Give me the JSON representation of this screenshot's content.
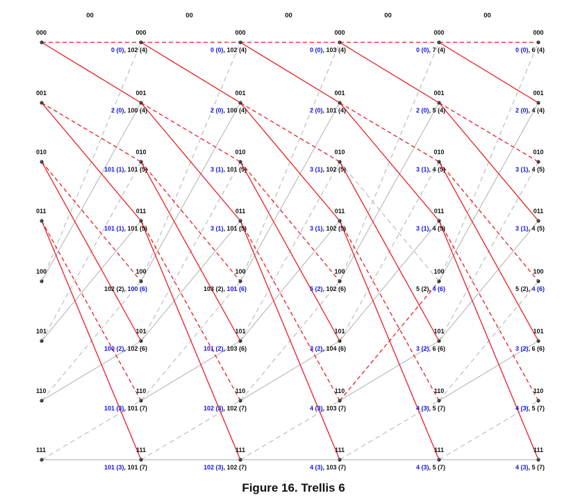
{
  "figure": {
    "caption": "Figure 16. Trellis 6"
  },
  "trellis": {
    "step_labels": [
      "00",
      "00",
      "00",
      "00",
      "00"
    ],
    "states": [
      "000",
      "001",
      "010",
      "011",
      "100",
      "101",
      "110",
      "111"
    ],
    "stages": [
      {
        "metrics": []
      },
      {
        "metrics": [
          [
            {
              "t": "0 (0)",
              "c": "blue"
            },
            {
              "t": ", 102 (4)",
              "c": "black"
            }
          ],
          [
            {
              "t": "2 (0)",
              "c": "blue"
            },
            {
              "t": ", 100 (4)",
              "c": "black"
            }
          ],
          [
            {
              "t": "101 (1)",
              "c": "blue"
            },
            {
              "t": ", 101 (5)",
              "c": "black"
            }
          ],
          [
            {
              "t": "101 (1)",
              "c": "blue"
            },
            {
              "t": ", 101 (5)",
              "c": "black"
            }
          ],
          [
            {
              "t": "102 (2), ",
              "c": "black"
            },
            {
              "t": "100 (6)",
              "c": "blue"
            }
          ],
          [
            {
              "t": "100 (2)",
              "c": "blue"
            },
            {
              "t": ", 102 (6)",
              "c": "black"
            }
          ],
          [
            {
              "t": "101 (3)",
              "c": "blue"
            },
            {
              "t": ", 101 (7)",
              "c": "black"
            }
          ],
          [
            {
              "t": "101 (3)",
              "c": "blue"
            },
            {
              "t": ", 101 (7)",
              "c": "black"
            }
          ]
        ]
      },
      {
        "metrics": [
          [
            {
              "t": "0 (0)",
              "c": "blue"
            },
            {
              "t": ", 102 (4)",
              "c": "black"
            }
          ],
          [
            {
              "t": "2 (0)",
              "c": "blue"
            },
            {
              "t": ", 100 (4)",
              "c": "black"
            }
          ],
          [
            {
              "t": "3 (1)",
              "c": "blue"
            },
            {
              "t": ", 101 (5)",
              "c": "black"
            }
          ],
          [
            {
              "t": "3 (1)",
              "c": "blue"
            },
            {
              "t": ", 101 (5)",
              "c": "black"
            }
          ],
          [
            {
              "t": "103 (2), ",
              "c": "black"
            },
            {
              "t": "101 (6)",
              "c": "blue"
            }
          ],
          [
            {
              "t": "101 (2)",
              "c": "blue"
            },
            {
              "t": ", 103 (6)",
              "c": "black"
            }
          ],
          [
            {
              "t": "102 (3)",
              "c": "blue"
            },
            {
              "t": ", 102 (7)",
              "c": "black"
            }
          ],
          [
            {
              "t": "102 (3)",
              "c": "blue"
            },
            {
              "t": ", 102 (7)",
              "c": "black"
            }
          ]
        ]
      },
      {
        "metrics": [
          [
            {
              "t": "0 (0)",
              "c": "blue"
            },
            {
              "t": ", 103 (4)",
              "c": "black"
            }
          ],
          [
            {
              "t": "2 (0)",
              "c": "blue"
            },
            {
              "t": ", 101 (4)",
              "c": "black"
            }
          ],
          [
            {
              "t": "3 (1)",
              "c": "blue"
            },
            {
              "t": ", 102 (5)",
              "c": "black"
            }
          ],
          [
            {
              "t": "3 (1)",
              "c": "blue"
            },
            {
              "t": ", 102 (5)",
              "c": "black"
            }
          ],
          [
            {
              "t": "5 (2)",
              "c": "blue"
            },
            {
              "t": ", 102 (6)",
              "c": "black"
            }
          ],
          [
            {
              "t": "3 (2)",
              "c": "blue"
            },
            {
              "t": ", 104 (6)",
              "c": "black"
            }
          ],
          [
            {
              "t": "4 (3)",
              "c": "blue"
            },
            {
              "t": ", 103 (7)",
              "c": "black"
            }
          ],
          [
            {
              "t": "4 (3)",
              "c": "blue"
            },
            {
              "t": ", 103 (7)",
              "c": "black"
            }
          ]
        ]
      },
      {
        "metrics": [
          [
            {
              "t": "0 (0)",
              "c": "blue"
            },
            {
              "t": ", 7 (4)",
              "c": "black"
            }
          ],
          [
            {
              "t": "2 (0)",
              "c": "blue"
            },
            {
              "t": ", 5 (4)",
              "c": "black"
            }
          ],
          [
            {
              "t": "3 (1)",
              "c": "blue"
            },
            {
              "t": ", 4 (5)",
              "c": "black"
            }
          ],
          [
            {
              "t": "3 (1)",
              "c": "blue"
            },
            {
              "t": ", 4 (5)",
              "c": "black"
            }
          ],
          [
            {
              "t": "5 (2), ",
              "c": "black"
            },
            {
              "t": "4 (6)",
              "c": "blue"
            }
          ],
          [
            {
              "t": "3 (2)",
              "c": "blue"
            },
            {
              "t": ", 6 (6)",
              "c": "black"
            }
          ],
          [
            {
              "t": "4 (3)",
              "c": "blue"
            },
            {
              "t": ", 5 (7)",
              "c": "black"
            }
          ],
          [
            {
              "t": "4 (3)",
              "c": "blue"
            },
            {
              "t": ", 5 (7)",
              "c": "black"
            }
          ]
        ]
      },
      {
        "metrics": [
          [
            {
              "t": "0 (0)",
              "c": "blue"
            },
            {
              "t": ", 6 (4)",
              "c": "black"
            }
          ],
          [
            {
              "t": "2 (0)",
              "c": "blue"
            },
            {
              "t": ", 4 (4)",
              "c": "black"
            }
          ],
          [
            {
              "t": "3 (1)",
              "c": "blue"
            },
            {
              "t": ", 4 (5)",
              "c": "black"
            }
          ],
          [
            {
              "t": "3 (1)",
              "c": "blue"
            },
            {
              "t": ", 4 (5)",
              "c": "black"
            }
          ],
          [
            {
              "t": "5 (2), ",
              "c": "black"
            },
            {
              "t": "4 (6)",
              "c": "blue"
            }
          ],
          [
            {
              "t": "3 (2)",
              "c": "blue"
            },
            {
              "t": ", 6 (6)",
              "c": "black"
            }
          ],
          [
            {
              "t": "4 (3)",
              "c": "blue"
            },
            {
              "t": ", 5 (7)",
              "c": "black"
            }
          ],
          [
            {
              "t": "4 (3)",
              "c": "blue"
            },
            {
              "t": ", 5 (7)",
              "c": "black"
            }
          ]
        ]
      }
    ],
    "branches": [
      {
        "from": "000",
        "to": "000",
        "input": 0
      },
      {
        "from": "000",
        "to": "001",
        "input": 1
      },
      {
        "from": "001",
        "to": "010",
        "input": 0
      },
      {
        "from": "001",
        "to": "011",
        "input": 1
      },
      {
        "from": "010",
        "to": "100",
        "input": 0
      },
      {
        "from": "010",
        "to": "101",
        "input": 1
      },
      {
        "from": "011",
        "to": "110",
        "input": 0
      },
      {
        "from": "011",
        "to": "111",
        "input": 1
      },
      {
        "from": "100",
        "to": "000",
        "input": 0
      },
      {
        "from": "100",
        "to": "001",
        "input": 1
      },
      {
        "from": "101",
        "to": "010",
        "input": 0
      },
      {
        "from": "101",
        "to": "011",
        "input": 1
      },
      {
        "from": "110",
        "to": "100",
        "input": 0
      },
      {
        "from": "110",
        "to": "101",
        "input": 1
      },
      {
        "from": "111",
        "to": "110",
        "input": 0
      },
      {
        "from": "111",
        "to": "111",
        "input": 1
      }
    ],
    "survivors": [
      [
        [
          0,
          0
        ],
        [
          0,
          1
        ],
        [
          1,
          2
        ],
        [
          1,
          3
        ],
        [
          2,
          4
        ],
        [
          2,
          5
        ],
        [
          3,
          6
        ],
        [
          3,
          7
        ]
      ],
      [
        [
          0,
          0
        ],
        [
          0,
          1
        ],
        [
          1,
          2
        ],
        [
          1,
          3
        ],
        [
          2,
          4
        ],
        [
          2,
          5
        ],
        [
          3,
          6
        ],
        [
          3,
          7
        ]
      ],
      [
        [
          0,
          0
        ],
        [
          0,
          1
        ],
        [
          1,
          2
        ],
        [
          1,
          3
        ],
        [
          2,
          4
        ],
        [
          2,
          5
        ],
        [
          3,
          6
        ],
        [
          3,
          7
        ]
      ],
      [
        [
          0,
          0
        ],
        [
          0,
          1
        ],
        [
          1,
          2
        ],
        [
          1,
          3
        ],
        [
          6,
          4
        ],
        [
          2,
          5
        ],
        [
          3,
          6
        ],
        [
          3,
          7
        ]
      ],
      [
        [
          0,
          0
        ],
        [
          0,
          1
        ],
        [
          1,
          2
        ],
        [
          1,
          3
        ],
        [
          2,
          4
        ],
        [
          2,
          5
        ],
        [
          3,
          6
        ],
        [
          3,
          7
        ]
      ]
    ],
    "style": {
      "survivor_color": "#e8141b",
      "discarded_color": "#b9b9b9",
      "metric_blue": "#1414e6",
      "metric_black": "#111111",
      "dashed_means_input": "0"
    }
  }
}
